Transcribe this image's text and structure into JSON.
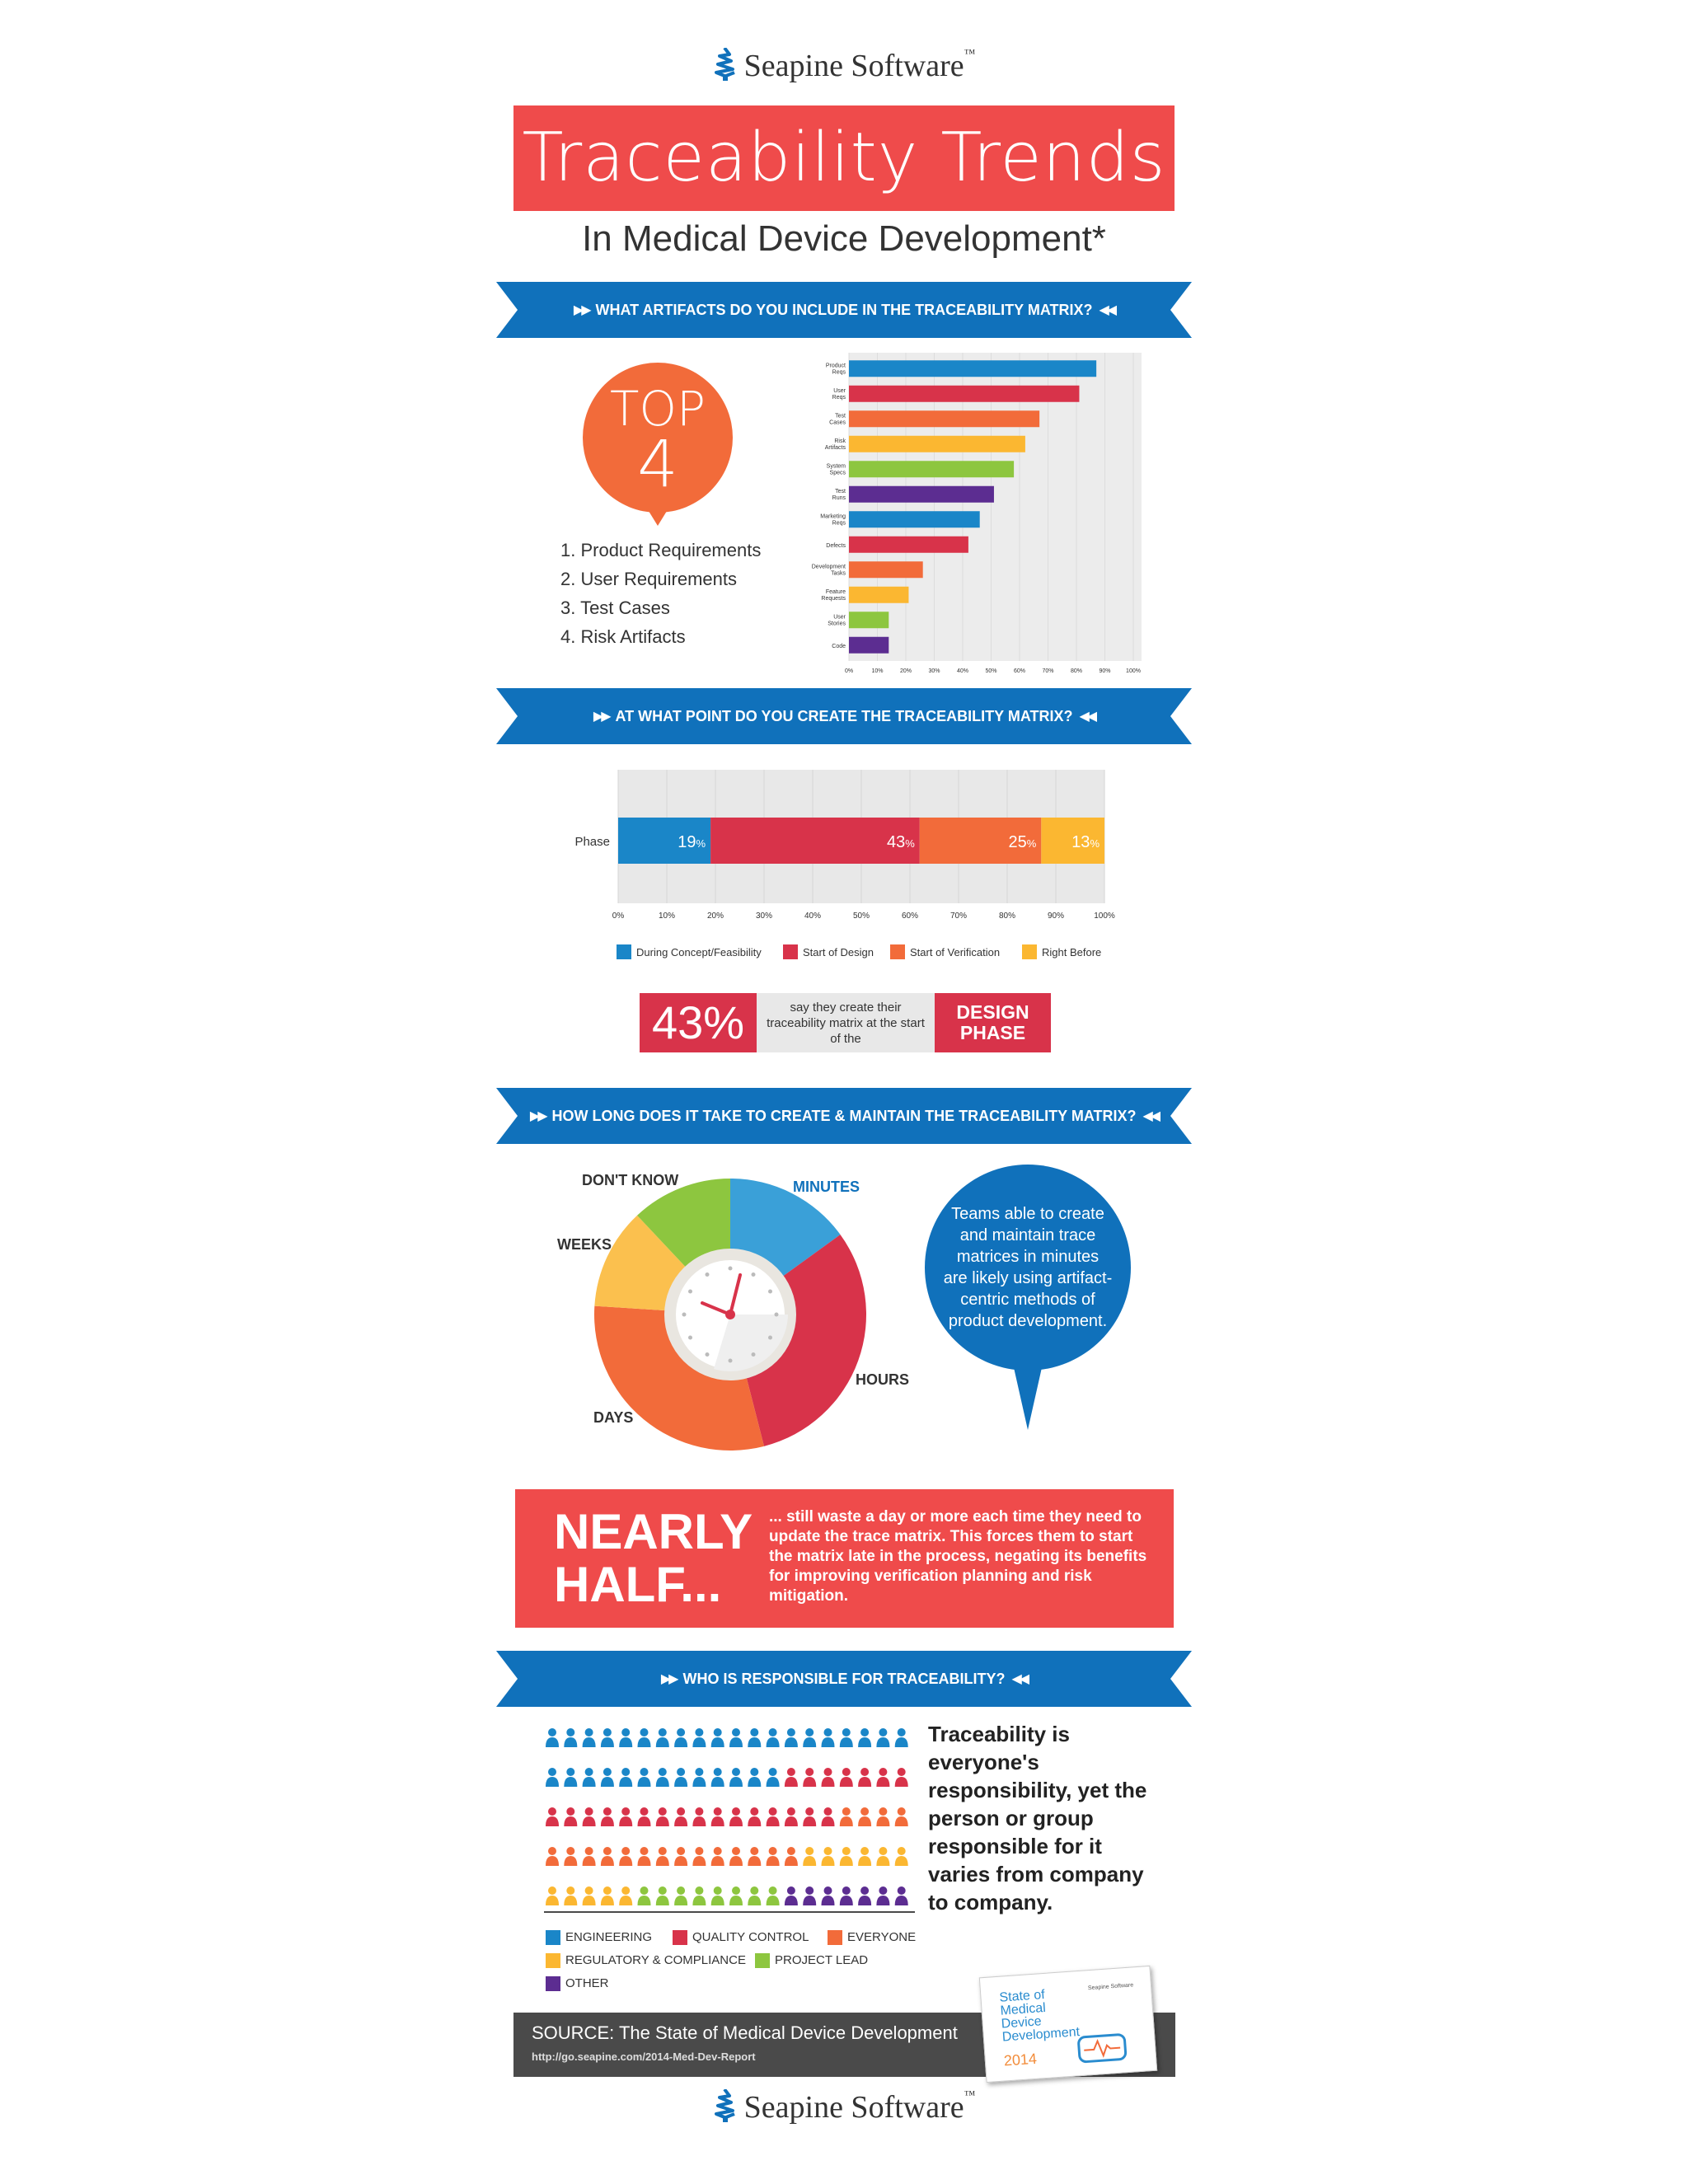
{
  "brand": {
    "name": "Seapine Software",
    "tm": "™"
  },
  "title": "Traceability Trends",
  "subtitle": "In Medical Device Development*",
  "colors": {
    "red": "#ef4b4b",
    "crimson": "#d8334a",
    "blue": "#1071bb",
    "orange": "#f26b3a",
    "yellow": "#fbb731",
    "green": "#8dc63f",
    "purple": "#5c2d91"
  },
  "section1": {
    "heading": "WHAT ARTIFACTS DO YOU INCLUDE IN THE TRACEABILITY MATRIX?",
    "top_word": "TOP",
    "top_num": "4",
    "top_list": [
      "1. Product Requirements",
      "2. User Requirements",
      "3. Test Cases",
      "4. Risk Artifacts"
    ]
  },
  "section2": {
    "heading": "AT WHAT POINT DO YOU CREATE THE TRACEABILITY MATRIX?",
    "callout_pct": "43%",
    "callout_text": "say they create their traceability matrix at the start of the",
    "callout_phase": "DESIGN PHASE"
  },
  "section3": {
    "heading": "HOW LONG DOES IT TAKE TO CREATE & MAINTAIN THE TRACEABILITY MATRIX?",
    "bubble_text": "Teams able to create and maintain trace matrices in minutes are likely using artifact-centric methods of product development."
  },
  "nearly_half": {
    "big": "NEARLY HALF...",
    "text": "... still waste a day or more each time they need to update the trace matrix. This forces them to start the matrix late in the process, negating its benefits for improving verification planning and risk mitigation."
  },
  "section4": {
    "heading": "WHO IS RESPONSIBLE FOR TRACEABILITY?",
    "statement": "Traceability is everyone's responsibility, yet the person or group responsible for it varies from company to company.",
    "legend": [
      {
        "label": "ENGINEERING",
        "color": "#1a86c8"
      },
      {
        "label": "QUALITY CONTROL",
        "color": "#d8334a"
      },
      {
        "label": "EVERYONE",
        "color": "#f26b3a"
      },
      {
        "label": "REGULATORY & COMPLIANCE",
        "color": "#fbb731"
      },
      {
        "label": "PROJECT LEAD",
        "color": "#8dc63f"
      },
      {
        "label": "OTHER",
        "color": "#5c2d91"
      }
    ],
    "people_per_row": 20,
    "people_counts": {
      "ENGINEERING": 33,
      "QUALITY CONTROL": 23,
      "EVERYONE": 18,
      "REGULATORY & COMPLIANCE": 11,
      "PROJECT LEAD": 8,
      "OTHER": 7
    }
  },
  "source": {
    "title": "SOURCE: The State of Medical Device Development",
    "url": "http://go.seapine.com/2014-Med-Dev-Report",
    "report_title": "State of Medical Device Development",
    "report_year": "2014",
    "report_brand": "Seapine Software"
  },
  "chart_data": [
    {
      "type": "bar",
      "orientation": "horizontal",
      "categories": [
        "Product Reqs",
        "User Reqs",
        "Test Cases",
        "Risk Artifacts",
        "System Specs",
        "Test Runs",
        "Marketing Reqs",
        "Defects",
        "Development Tasks",
        "Feature Requests",
        "User Stories",
        "Code"
      ],
      "values": [
        87,
        81,
        67,
        62,
        58,
        51,
        46,
        42,
        26,
        21,
        14,
        14
      ],
      "colors": [
        "#1a86c8",
        "#d8334a",
        "#f26b3a",
        "#fbb731",
        "#8dc63f",
        "#5c2d91",
        "#1a86c8",
        "#d8334a",
        "#f26b3a",
        "#fbb731",
        "#8dc63f",
        "#5c2d91"
      ],
      "x_ticks": [
        "0%",
        "10%",
        "20%",
        "30%",
        "40%",
        "50%",
        "60%",
        "70%",
        "80%",
        "90%",
        "100%"
      ],
      "xlim": [
        0,
        100
      ]
    },
    {
      "type": "bar",
      "orientation": "horizontal",
      "stacked": true,
      "categories": [
        "Phase"
      ],
      "series": [
        {
          "name": "During Concept/Feasibility",
          "values": [
            19
          ],
          "color": "#1a86c8",
          "label": "19"
        },
        {
          "name": "Start of Design",
          "values": [
            43
          ],
          "color": "#d8334a",
          "label": "43"
        },
        {
          "name": "Start of Verification",
          "values": [
            25
          ],
          "color": "#f26b3a",
          "label": "25"
        },
        {
          "name": "Right Before",
          "values": [
            13
          ],
          "color": "#fbb731",
          "label": "13"
        }
      ],
      "pct_sign": "%",
      "x_ticks": [
        "0%",
        "10%",
        "20%",
        "30%",
        "40%",
        "50%",
        "60%",
        "70%",
        "80%",
        "90%",
        "100%"
      ],
      "xlim": [
        0,
        100
      ],
      "legend_position": "bottom"
    },
    {
      "type": "pie",
      "donut": true,
      "categories": [
        "MINUTES",
        "HOURS",
        "DAYS",
        "WEEKS",
        "DON'T KNOW"
      ],
      "values": [
        15,
        31,
        30,
        12,
        12
      ],
      "colors": [
        "#3aa0d8",
        "#d8334a",
        "#f26b3a",
        "#fbc04e",
        "#8dc63f"
      ]
    }
  ]
}
